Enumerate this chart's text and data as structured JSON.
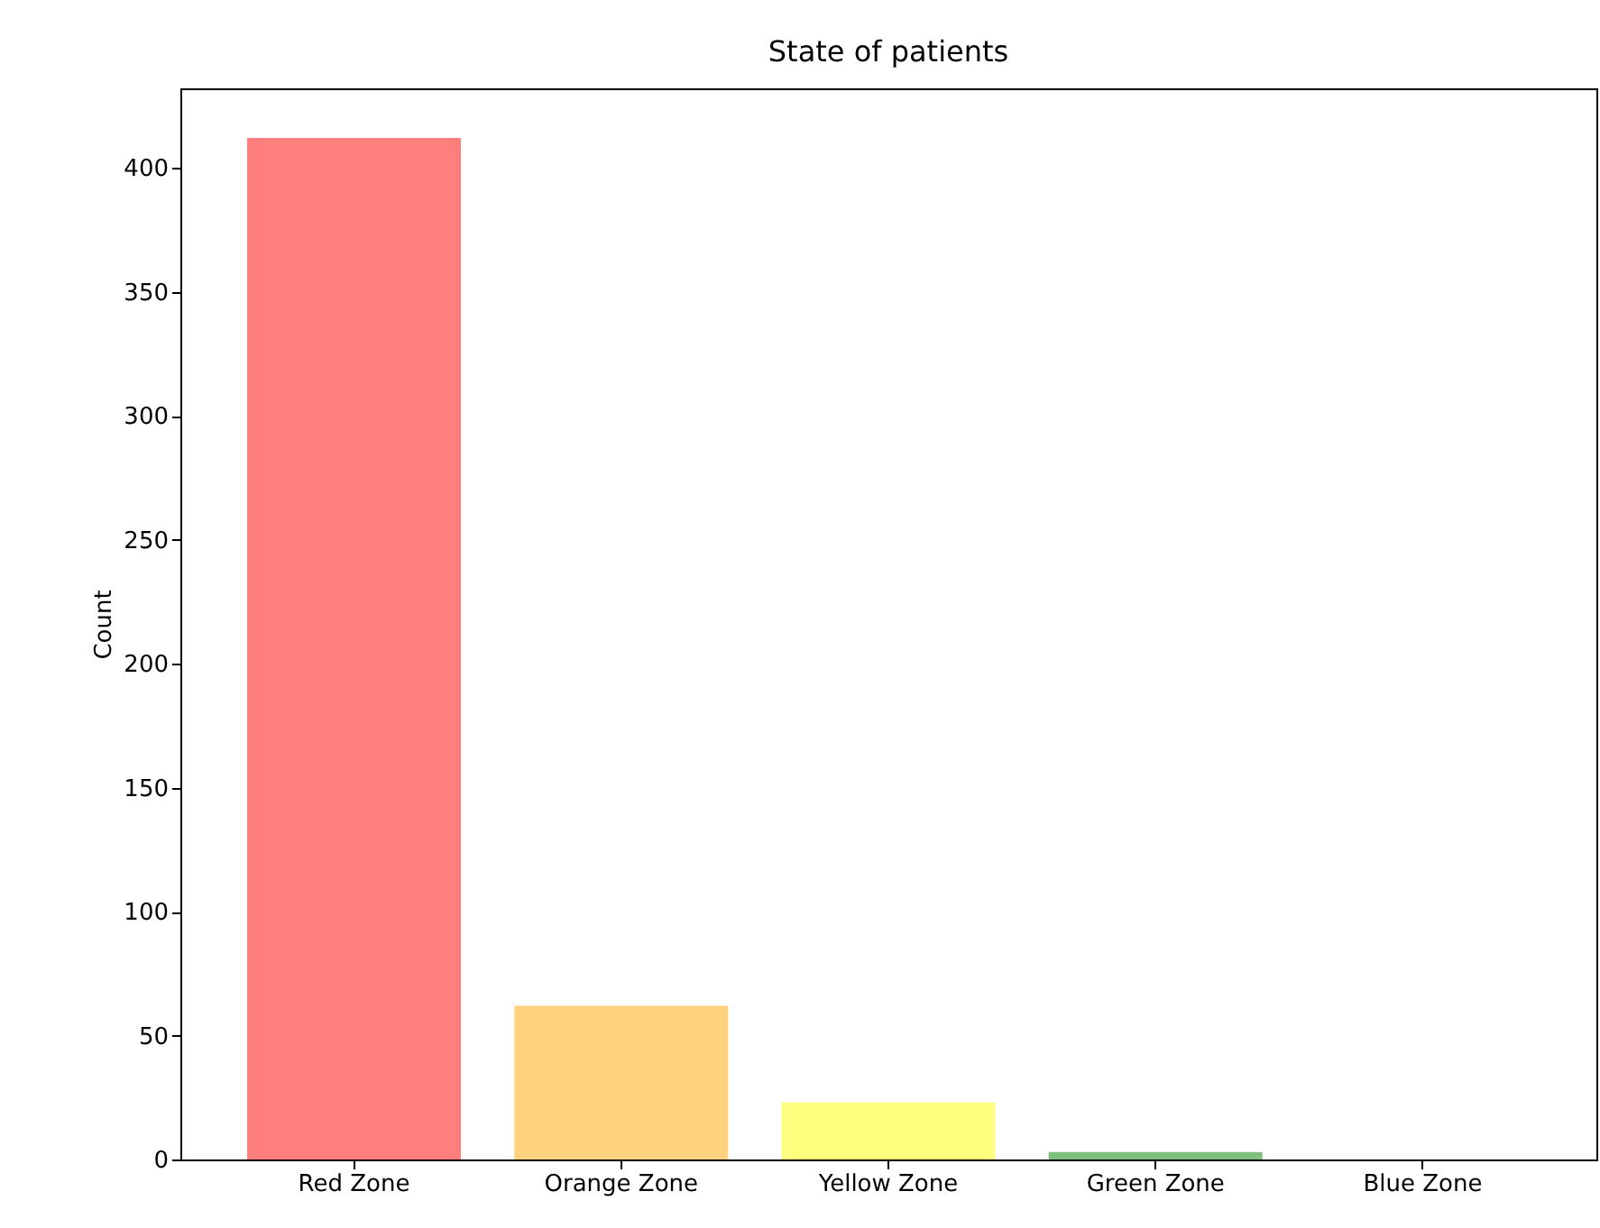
{
  "chart_data": {
    "type": "bar",
    "title": "State of patients",
    "ylabel": "Count",
    "categories": [
      "Red Zone",
      "Orange Zone",
      "Yellow Zone",
      "Green Zone",
      "Blue Zone"
    ],
    "values": [
      412,
      62,
      23,
      3,
      0
    ],
    "colors": [
      "#ff7f7f",
      "#ffd27f",
      "#ffff7f",
      "#7fbf7f",
      "#7f7fff"
    ],
    "ylim": [
      0,
      432
    ],
    "yticks": [
      0,
      50,
      100,
      150,
      200,
      250,
      300,
      350,
      400
    ],
    "grid": false,
    "legend": false
  }
}
